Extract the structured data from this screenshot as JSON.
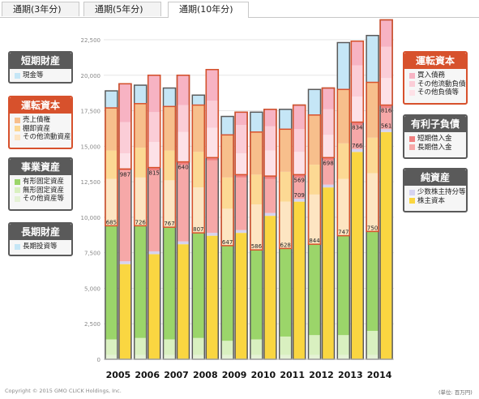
{
  "tabs": [
    {
      "label": "通期(3年分)",
      "active": false
    },
    {
      "label": "通期(5年分)",
      "active": false
    },
    {
      "label": "通期(10年分)",
      "active": true
    }
  ],
  "left_legend": [
    {
      "title": "短期財産",
      "items": [
        {
          "label": "現金等",
          "color": "#c5e6f6"
        }
      ]
    },
    {
      "title": "運転資本",
      "items": [
        {
          "label": "売上債権",
          "color": "#f7bf8c"
        },
        {
          "label": "棚卸資産",
          "color": "#fcd994"
        },
        {
          "label": "その他流動資産",
          "color": "#fde5c2"
        }
      ]
    },
    {
      "title": "事業資産",
      "items": [
        {
          "label": "有形固定資産",
          "color": "#9bd56a"
        },
        {
          "label": "無形固定資産",
          "color": "#d9f0c0"
        },
        {
          "label": "その他資産等",
          "color": "#e5f2d5"
        }
      ]
    },
    {
      "title": "長期財産",
      "items": [
        {
          "label": "長期投資等",
          "color": "#c5e6f6"
        }
      ]
    }
  ],
  "right_legend": [
    {
      "title": "運転資本",
      "items": [
        {
          "label": "買入債務",
          "color": "#f7b3c3"
        },
        {
          "label": "その他流動負債",
          "color": "#fbcdd7"
        },
        {
          "label": "その他負債等",
          "color": "#fde1e7"
        }
      ]
    },
    {
      "title": "有利子負債",
      "items": [
        {
          "label": "短期借入金",
          "color": "#f08080"
        },
        {
          "label": "長期借入金",
          "color": "#f6a8a8"
        }
      ]
    },
    {
      "title": "純資産",
      "items": [
        {
          "label": "少数株主持分等",
          "color": "#d6d3f0"
        },
        {
          "label": "株主資本",
          "color": "#fad641"
        }
      ]
    }
  ],
  "footer": {
    "copyright": "Copyright © 2015 GMO CLICK Holdings, Inc.",
    "unit": "(単位: 百万円)"
  },
  "colors": {
    "box_gray": "#5a5a5a",
    "box_red": "#d7512c"
  },
  "chart_data": {
    "type": "bar",
    "subtype": "paired stacked balance-sheet bars (assets left, liabilities+equity right)",
    "categories": [
      "2005",
      "2006",
      "2007",
      "2008",
      "2009",
      "2010",
      "2011",
      "2012",
      "2013",
      "2014"
    ],
    "ylim": [
      0,
      22500
    ],
    "y_ticks": [
      0,
      2500,
      5000,
      7500,
      10000,
      12500,
      15000,
      17500,
      20000,
      22500
    ],
    "y_tick_labels": [
      "0",
      "2,500",
      "5,000",
      "7,500",
      "10,000",
      "12,500",
      "15,000",
      "17,500",
      "20,000",
      "22,500"
    ],
    "grid": true,
    "assets": {
      "layers_bottom_to_top": [
        "長期投資等",
        "その他資産等",
        "無形固定資産",
        "有形固定資産",
        "その他流動資産",
        "棚卸資産",
        "売上債権",
        "現金等"
      ],
      "layer_colors": [
        "#c5e6f6",
        "#e5f2d5",
        "#d9f0c0",
        "#9bd56a",
        "#fde5c2",
        "#fcd994",
        "#f7bf8c",
        "#c5e6f6"
      ],
      "values": [
        [
          0,
          300,
          1100,
          8000,
          3300,
          2000,
          3000,
          1200
        ],
        [
          0,
          300,
          1200,
          7900,
          3400,
          2100,
          3100,
          1300
        ],
        [
          0,
          300,
          1100,
          7900,
          3300,
          2100,
          3100,
          1300
        ],
        [
          0,
          300,
          1200,
          7400,
          3200,
          2500,
          3300,
          700
        ],
        [
          0,
          300,
          1000,
          6700,
          2600,
          2200,
          3000,
          1300
        ],
        [
          0,
          300,
          1100,
          6300,
          3200,
          2100,
          3000,
          1400
        ],
        [
          0,
          300,
          1300,
          6200,
          3300,
          2100,
          3000,
          1400
        ],
        [
          0,
          300,
          1400,
          6400,
          3500,
          2100,
          3500,
          1800
        ],
        [
          0,
          300,
          1400,
          7000,
          4000,
          2500,
          3800,
          3300
        ],
        [
          0,
          300,
          1700,
          7000,
          4100,
          2500,
          3900,
          3300
        ]
      ],
      "labels": [
        685,
        726,
        767,
        807,
        647,
        586,
        628,
        844,
        747,
        750
      ]
    },
    "liabilities_equity": {
      "layers_bottom_to_top": [
        "株主資本",
        "少数株主持分等",
        "長期借入金",
        "短期借入金",
        "その他負債等",
        "その他流動負債",
        "買入債務"
      ],
      "layer_colors": [
        "#fad641",
        "#d6d3f0",
        "#f6a8a8",
        "#f08080",
        "#fde1e7",
        "#fbcdd7",
        "#f7b3c3"
      ],
      "values": [
        [
          6700,
          200,
          6400,
          100,
          1100,
          2200,
          2700
        ],
        [
          7400,
          200,
          5700,
          200,
          1800,
          2100,
          2600
        ],
        [
          8100,
          200,
          5400,
          200,
          2100,
          1900,
          2100
        ],
        [
          8700,
          200,
          5100,
          200,
          2100,
          1900,
          2200
        ],
        [
          8900,
          200,
          3700,
          200,
          1500,
          2000,
          900
        ],
        [
          10100,
          200,
          2400,
          200,
          1800,
          1700,
          1200
        ],
        [
          11100,
          200,
          1500,
          200,
          1600,
          1600,
          1700
        ],
        [
          12100,
          200,
          1700,
          200,
          1600,
          1800,
          1500
        ],
        [
          14600,
          200,
          1700,
          200,
          1800,
          2200,
          1700
        ],
        [
          16000,
          200,
          1500,
          200,
          1900,
          2200,
          1900
        ]
      ],
      "labels": [
        987,
        815,
        640,
        null,
        null,
        null,
        569,
        698,
        834,
        816
      ],
      "labels_2": [
        null,
        null,
        null,
        null,
        null,
        null,
        709,
        null,
        766,
        561
      ]
    }
  }
}
